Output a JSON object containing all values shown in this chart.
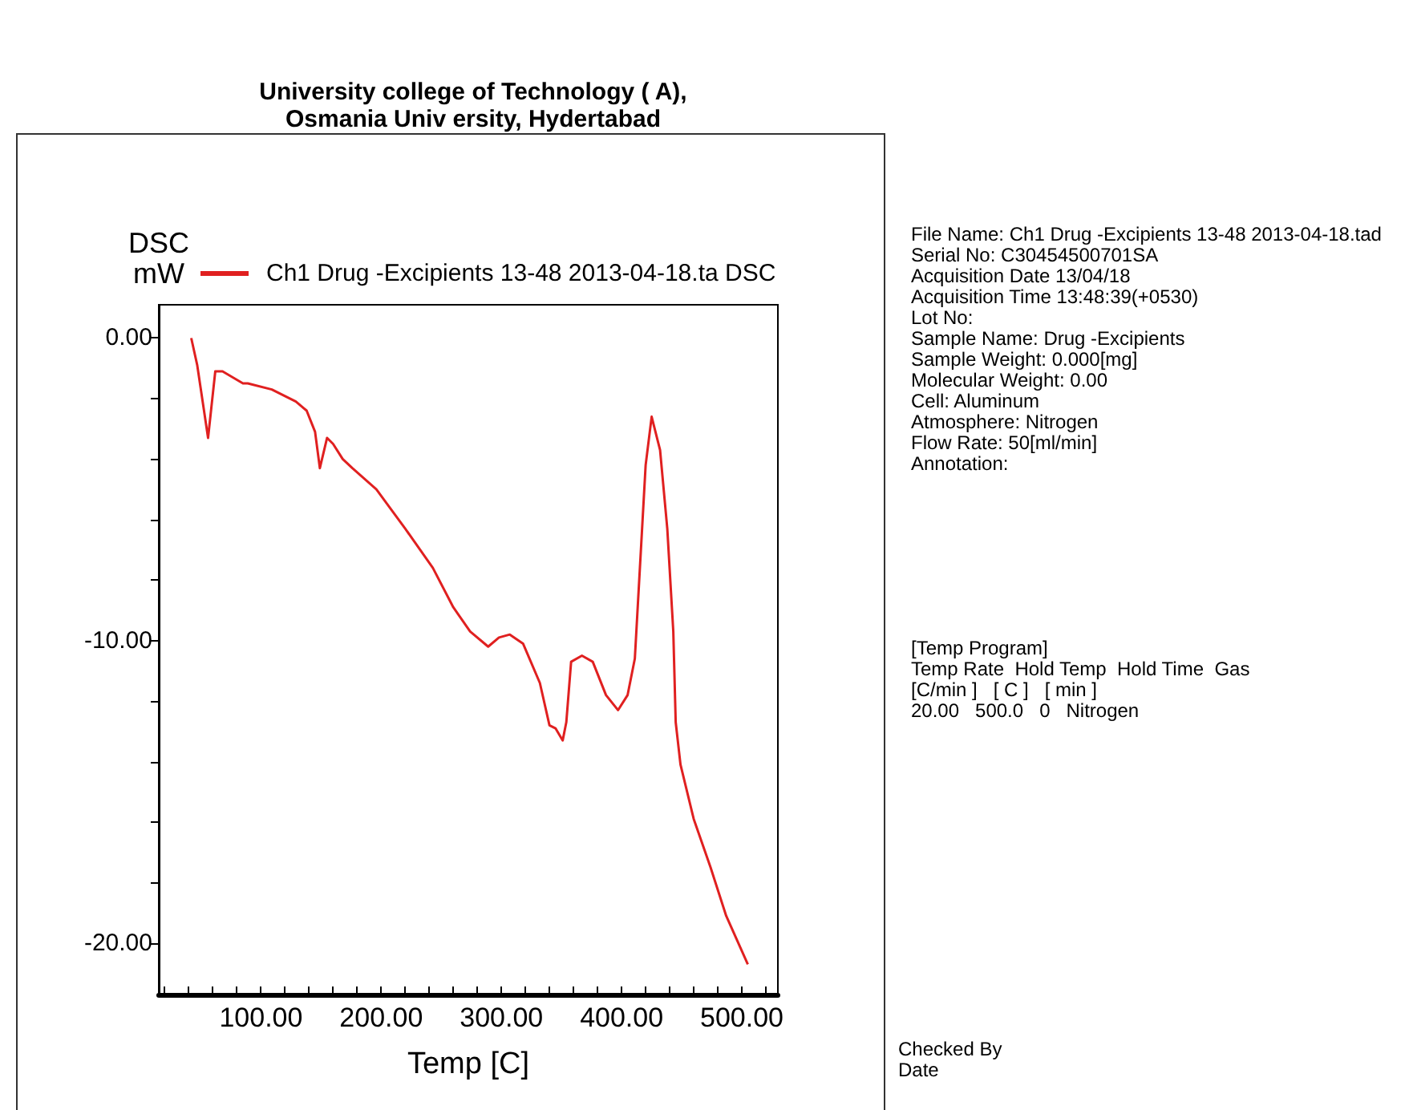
{
  "chart_data": {
    "type": "line",
    "title": "University college of Technology ( A),\nOsmania Univ ersity, Hydertabad",
    "xlabel": "Temp [C]",
    "ylabel": "DSC\nmW",
    "legend": "top",
    "grid": false,
    "marker": "none",
    "line_style": "solid",
    "xlim": [
      15,
      530
    ],
    "ylim": [
      -21.7,
      1.1
    ],
    "xticks": [
      {
        "value": 20,
        "label": null
      },
      {
        "value": 40,
        "label": null
      },
      {
        "value": 60,
        "label": null
      },
      {
        "value": 80,
        "label": null
      },
      {
        "value": 100,
        "label": "100.00"
      },
      {
        "value": 120,
        "label": null
      },
      {
        "value": 140,
        "label": null
      },
      {
        "value": 160,
        "label": null
      },
      {
        "value": 180,
        "label": null
      },
      {
        "value": 200,
        "label": "200.00"
      },
      {
        "value": 220,
        "label": null
      },
      {
        "value": 240,
        "label": null
      },
      {
        "value": 260,
        "label": null
      },
      {
        "value": 280,
        "label": null
      },
      {
        "value": 300,
        "label": "300.00"
      },
      {
        "value": 320,
        "label": null
      },
      {
        "value": 340,
        "label": null
      },
      {
        "value": 360,
        "label": null
      },
      {
        "value": 380,
        "label": null
      },
      {
        "value": 400,
        "label": "400.00"
      },
      {
        "value": 420,
        "label": null
      },
      {
        "value": 440,
        "label": null
      },
      {
        "value": 460,
        "label": null
      },
      {
        "value": 480,
        "label": null
      },
      {
        "value": 500,
        "label": "500.00"
      },
      {
        "value": 520,
        "label": null
      }
    ],
    "yticks": [
      {
        "value": 0,
        "label": "0.00"
      },
      {
        "value": -2,
        "label": null
      },
      {
        "value": -4,
        "label": null
      },
      {
        "value": -6,
        "label": null
      },
      {
        "value": -8,
        "label": null
      },
      {
        "value": -10,
        "label": "-10.00"
      },
      {
        "value": -12,
        "label": null
      },
      {
        "value": -14,
        "label": null
      },
      {
        "value": -16,
        "label": null
      },
      {
        "value": -18,
        "label": null
      },
      {
        "value": -20,
        "label": "-20.00"
      }
    ],
    "series": [
      {
        "name": "Ch1 Drug -Excipients 13-48 2013-04-18.ta DSC",
        "color": "#e02020",
        "x": [
          42,
          47,
          56,
          62,
          68,
          85,
          89,
          109,
          129,
          138,
          145,
          149,
          155,
          160,
          168,
          176,
          196,
          220,
          243,
          260,
          274,
          289,
          298,
          307,
          318,
          332,
          340,
          345,
          351,
          354,
          358,
          367,
          376,
          387,
          397,
          405,
          411,
          420,
          425,
          432,
          438,
          443,
          445,
          449,
          460,
          474,
          487,
          505
        ],
        "values": [
          0,
          -0.9,
          -3.3,
          -1.1,
          -1.1,
          -1.5,
          -1.5,
          -1.7,
          -2.1,
          -2.4,
          -3.1,
          -4.3,
          -3.3,
          -3.5,
          -4.0,
          -4.3,
          -5.0,
          -6.3,
          -7.6,
          -8.9,
          -9.7,
          -10.2,
          -9.9,
          -9.8,
          -10.1,
          -11.4,
          -12.8,
          -12.9,
          -13.3,
          -12.7,
          -10.7,
          -10.5,
          -10.7,
          -11.8,
          -12.3,
          -11.8,
          -10.6,
          -4.2,
          -2.6,
          -3.7,
          -6.3,
          -9.7,
          -12.7,
          -14.1,
          -15.9,
          -17.5,
          -19.1,
          -20.7
        ]
      }
    ],
    "annotations": [
      "File Name: Ch1 Drug -Excipients 13-48 2013-04-18.tad\nSerial No: C30454500701SA\nAcquisition Date 13/04/18\nAcquisition Time 13:48:39(+0530)\nLot No:\nSample Name: Drug -Excipients\nSample Weight: 0.000[mg]\nMolecular Weight: 0.00\nCell: Aluminum\nAtmosphere: Nitrogen\nFlow Rate: 50[ml/min]\nAnnotation:",
      "[Temp Program]\nTemp Rate  Hold Temp  Hold Time  Gas\n[C/min ]   [ C ]   [ min ]\n20.00   500.0   0   Nitrogen",
      "Checked By\nDate"
    ]
  }
}
